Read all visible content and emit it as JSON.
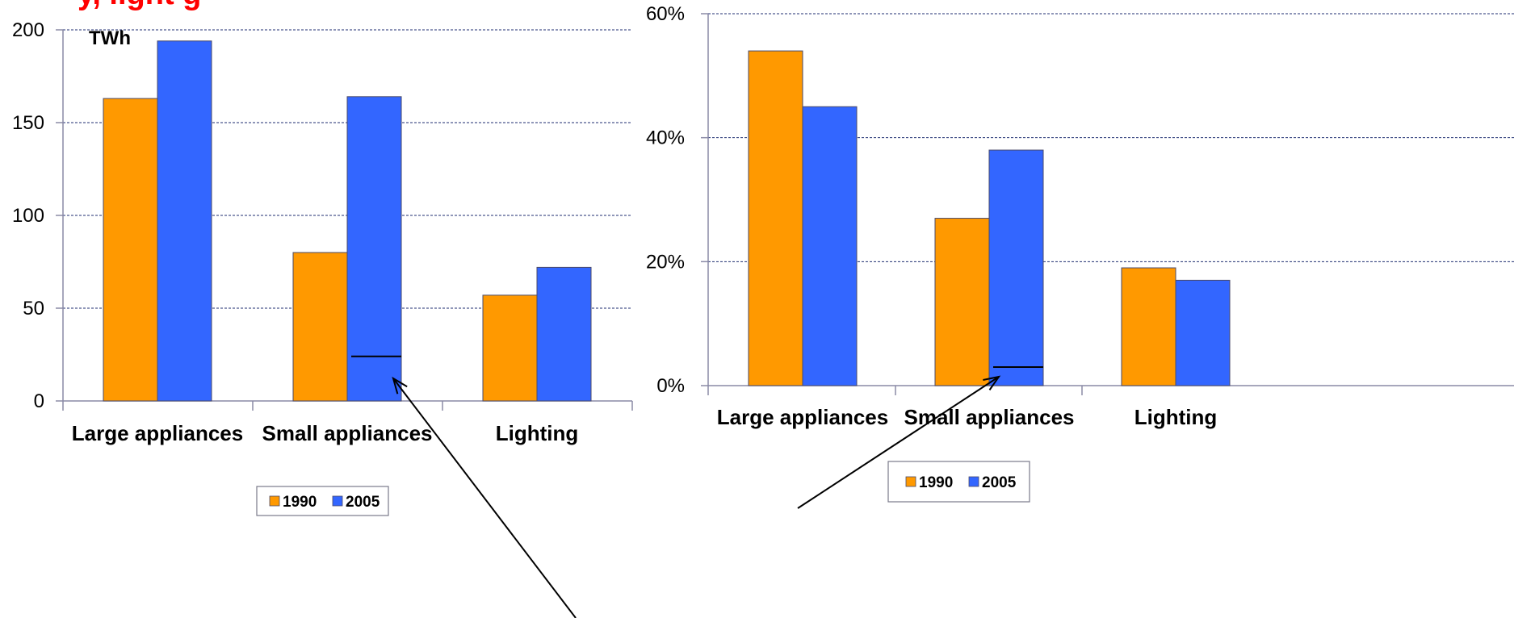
{
  "clipped_title": "y, light g",
  "colors": {
    "series_1990": "#ff9900",
    "series_2005": "#3366ff",
    "bar_outline": "#4a4a6a",
    "grid": "#1f2e70",
    "axis": "#8a8aa6",
    "arrow": "#000000",
    "legend_border": "#7a7a8a"
  },
  "chart_data": [
    {
      "type": "bar",
      "title": "",
      "unit_label": "TWh",
      "xlabel": "",
      "ylabel": "",
      "categories": [
        "Large appliances",
        "Small appliances",
        "Lighting"
      ],
      "series": [
        {
          "name": "1990",
          "values": [
            163,
            80,
            57
          ]
        },
        {
          "name": "2005",
          "values": [
            194,
            164,
            72
          ]
        }
      ],
      "ylim": [
        0,
        200
      ],
      "yticks": [
        0,
        50,
        100,
        150,
        200
      ],
      "ytick_labels": [
        "0",
        "50",
        "100",
        "150",
        "200"
      ],
      "marker_line": {
        "category": "Small appliances",
        "series": "2005",
        "value": 24
      },
      "grid": true,
      "legend": {
        "position": "bottom",
        "entries": [
          "1990",
          "2005"
        ]
      }
    },
    {
      "type": "bar",
      "title": "",
      "xlabel": "",
      "ylabel": "",
      "categories": [
        "Large appliances",
        "Small appliances",
        "Lighting"
      ],
      "series": [
        {
          "name": "1990",
          "values": [
            54,
            27,
            19
          ]
        },
        {
          "name": "2005",
          "values": [
            45,
            38,
            17
          ]
        }
      ],
      "ylim": [
        0,
        60
      ],
      "yticks": [
        0,
        20,
        40,
        60
      ],
      "ytick_labels": [
        "0%",
        "20%",
        "40%",
        "60%"
      ],
      "marker_line": {
        "category": "Small appliances",
        "series": "2005",
        "value": 3
      },
      "grid": true,
      "legend": {
        "position": "bottom",
        "entries": [
          "1990",
          "2005"
        ]
      }
    }
  ]
}
